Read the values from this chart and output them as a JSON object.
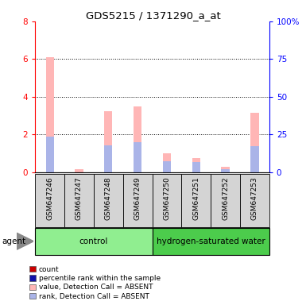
{
  "title": "GDS5215 / 1371290_a_at",
  "samples": [
    "GSM647246",
    "GSM647247",
    "GSM647248",
    "GSM647249",
    "GSM647250",
    "GSM647251",
    "GSM647252",
    "GSM647253"
  ],
  "groups": [
    {
      "name": "control",
      "indices": [
        0,
        1,
        2,
        3
      ],
      "color": "#90ee90"
    },
    {
      "name": "hydrogen-saturated water",
      "indices": [
        4,
        5,
        6,
        7
      ],
      "color": "#4ccc4c"
    }
  ],
  "values_absent": [
    6.1,
    0.15,
    3.25,
    3.5,
    1.0,
    0.75,
    0.28,
    3.15
  ],
  "ranks_absent": [
    1.9,
    0.0,
    1.45,
    1.6,
    0.6,
    0.55,
    0.18,
    1.4
  ],
  "ylim_left": [
    0,
    8
  ],
  "ylim_right": [
    0,
    100
  ],
  "yticks_left": [
    0,
    2,
    4,
    6,
    8
  ],
  "yticks_right": [
    0,
    25,
    50,
    75,
    100
  ],
  "ytick_labels_right": [
    "0",
    "25",
    "50",
    "75",
    "100%"
  ],
  "bar_color_absent_value": "#ffb6b6",
  "bar_color_absent_rank": "#aab4e8",
  "legend": [
    {
      "label": "count",
      "color": "#cc0000"
    },
    {
      "label": "percentile rank within the sample",
      "color": "#1111aa"
    },
    {
      "label": "value, Detection Call = ABSENT",
      "color": "#ffb6b6"
    },
    {
      "label": "rank, Detection Call = ABSENT",
      "color": "#aab4e8"
    }
  ],
  "agent_label": "agent",
  "sample_bg_color": "#d4d4d4",
  "bar_width": 0.28
}
